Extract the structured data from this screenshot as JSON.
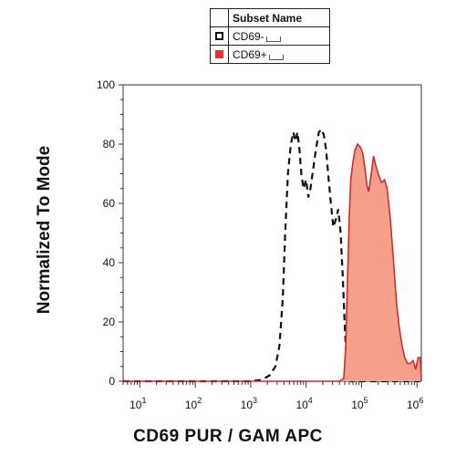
{
  "legend": {
    "header": "Subset Name",
    "items": [
      {
        "label": "CD69-",
        "swatch": "outline",
        "color": "#111111"
      },
      {
        "label": "CD69+",
        "swatch": "filled",
        "color": "#e03434"
      }
    ]
  },
  "chart_data": {
    "type": "area",
    "xlabel": "CD69 PUR / GAM APC",
    "ylabel": "Normalized To Mode",
    "x_scale": "log",
    "xlim": [
      5,
      1200000
    ],
    "ylim": [
      0,
      100
    ],
    "x_ticks": [
      {
        "value": 10,
        "base": "10",
        "exp": "1"
      },
      {
        "value": 100,
        "base": "10",
        "exp": "2"
      },
      {
        "value": 1000,
        "base": "10",
        "exp": "3"
      },
      {
        "value": 10000,
        "base": "10",
        "exp": "4"
      },
      {
        "value": 100000,
        "base": "10",
        "exp": "5"
      },
      {
        "value": 1000000,
        "base": "10",
        "exp": "6"
      }
    ],
    "y_ticks": [
      0,
      20,
      40,
      60,
      80,
      100
    ],
    "grid": false,
    "series": [
      {
        "name": "CD69-",
        "style": "dashed",
        "stroke": "#111111",
        "fill": "none",
        "points": [
          [
            5,
            0
          ],
          [
            1000,
            0
          ],
          [
            1600,
            0.5
          ],
          [
            2200,
            2
          ],
          [
            2800,
            5
          ],
          [
            3300,
            12
          ],
          [
            3800,
            28
          ],
          [
            4200,
            50
          ],
          [
            4700,
            70
          ],
          [
            5300,
            80
          ],
          [
            5900,
            84
          ],
          [
            6400,
            81
          ],
          [
            7000,
            84
          ],
          [
            7600,
            78
          ],
          [
            8200,
            70
          ],
          [
            9000,
            65
          ],
          [
            10000,
            68
          ],
          [
            11000,
            62
          ],
          [
            12000,
            65
          ],
          [
            13500,
            72
          ],
          [
            15000,
            78
          ],
          [
            17000,
            84
          ],
          [
            19000,
            85
          ],
          [
            21000,
            83
          ],
          [
            23000,
            78
          ],
          [
            25000,
            70
          ],
          [
            28000,
            60
          ],
          [
            31000,
            52
          ],
          [
            35000,
            55
          ],
          [
            38000,
            58
          ],
          [
            42000,
            50
          ],
          [
            46000,
            35
          ],
          [
            50000,
            18
          ],
          [
            54000,
            6
          ],
          [
            58000,
            1
          ],
          [
            65000,
            0
          ],
          [
            1200000,
            0
          ]
        ]
      },
      {
        "name": "CD69+",
        "style": "solid",
        "stroke": "#d42a2a",
        "fill": "#f5a08a",
        "points": [
          [
            5,
            0
          ],
          [
            40000,
            0
          ],
          [
            48000,
            1
          ],
          [
            52000,
            12
          ],
          [
            56000,
            35
          ],
          [
            60000,
            55
          ],
          [
            64000,
            68
          ],
          [
            70000,
            74
          ],
          [
            76000,
            78
          ],
          [
            85000,
            80
          ],
          [
            95000,
            79
          ],
          [
            105000,
            77
          ],
          [
            115000,
            72
          ],
          [
            125000,
            66
          ],
          [
            135000,
            64
          ],
          [
            150000,
            70
          ],
          [
            165000,
            76
          ],
          [
            180000,
            73
          ],
          [
            200000,
            70
          ],
          [
            230000,
            67
          ],
          [
            260000,
            68
          ],
          [
            290000,
            65
          ],
          [
            330000,
            55
          ],
          [
            380000,
            40
          ],
          [
            430000,
            26
          ],
          [
            480000,
            18
          ],
          [
            540000,
            12
          ],
          [
            600000,
            8
          ],
          [
            680000,
            6
          ],
          [
            760000,
            6
          ],
          [
            850000,
            7
          ],
          [
            950000,
            4
          ],
          [
            1050000,
            8
          ],
          [
            1150000,
            8
          ],
          [
            1200000,
            0
          ]
        ]
      }
    ]
  }
}
